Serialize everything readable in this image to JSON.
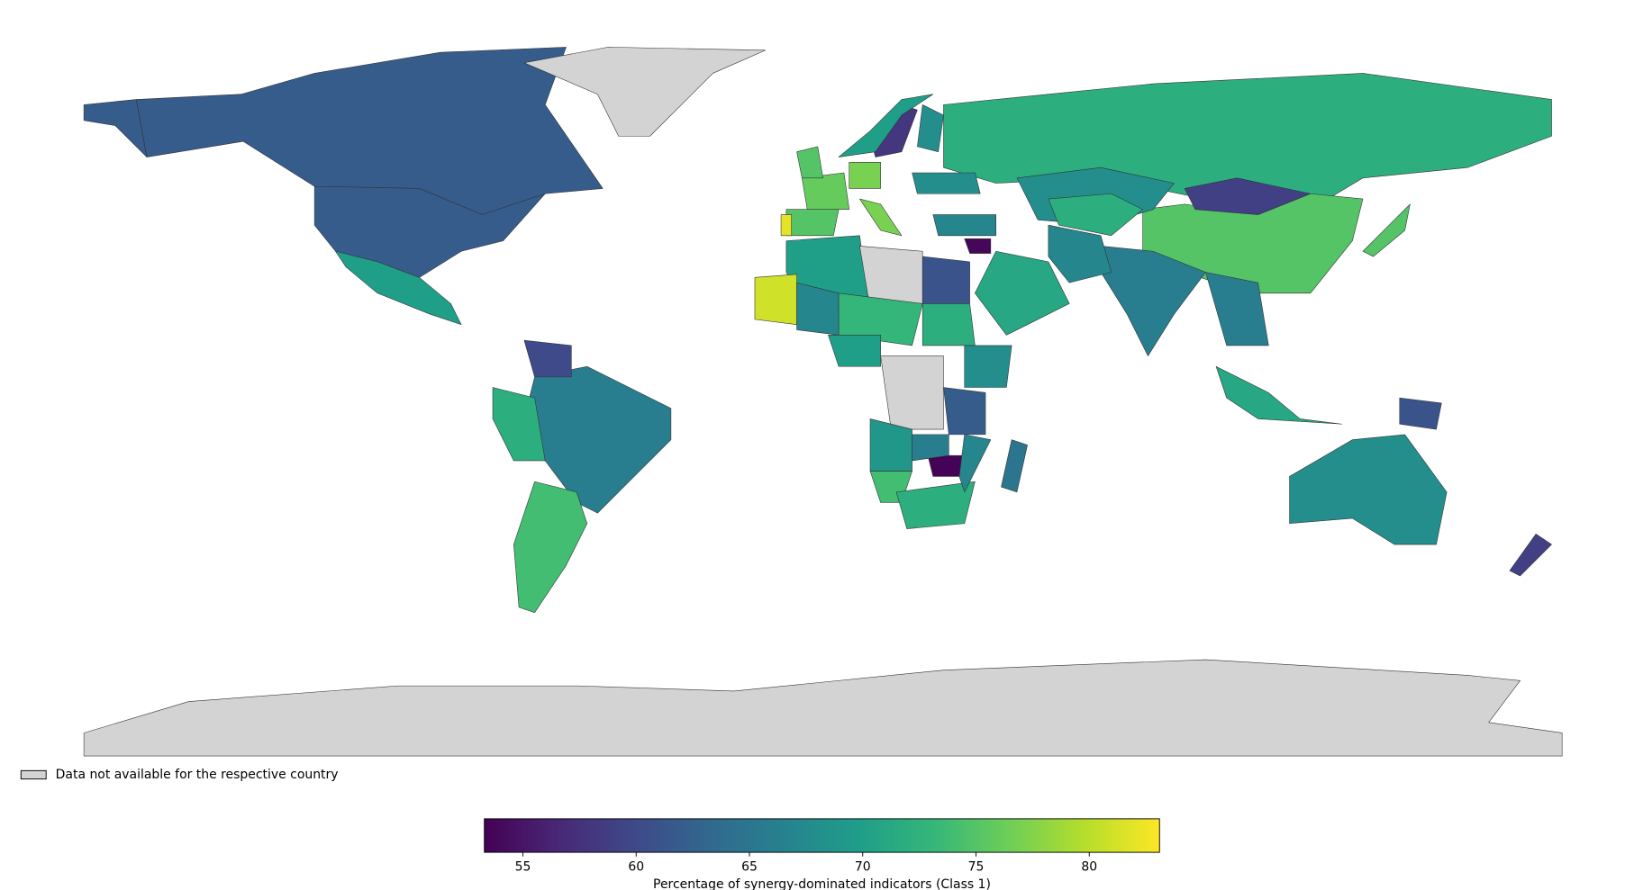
{
  "chart_data": {
    "type": "choropleth",
    "legend_label": "Data not available for the respective country",
    "colorbar_label": "Percentage of synergy-dominated indicators (Class 1)",
    "colormap": "viridis",
    "missing_color": "#d3d3d3",
    "lim": [
      53.3,
      83.1
    ],
    "ticks": [
      55,
      60,
      65,
      70,
      75,
      80
    ],
    "values": [
      62,
      62,
      62,
      70,
      null,
      66,
      74,
      60,
      72,
      72,
      75,
      59,
      66,
      68,
      71,
      67,
      70,
      null,
      61,
      81,
      67,
      73,
      72,
      68,
      null,
      70,
      69,
      74,
      72,
      62,
      53.5,
      66,
      67,
      65,
      75,
      82,
      76,
      77,
      58,
      70,
      68,
      75,
      77,
      68,
      67,
      53.8,
      68,
      59,
      71,
      61,
      75,
      null,
      66,
      72
    ]
  }
}
